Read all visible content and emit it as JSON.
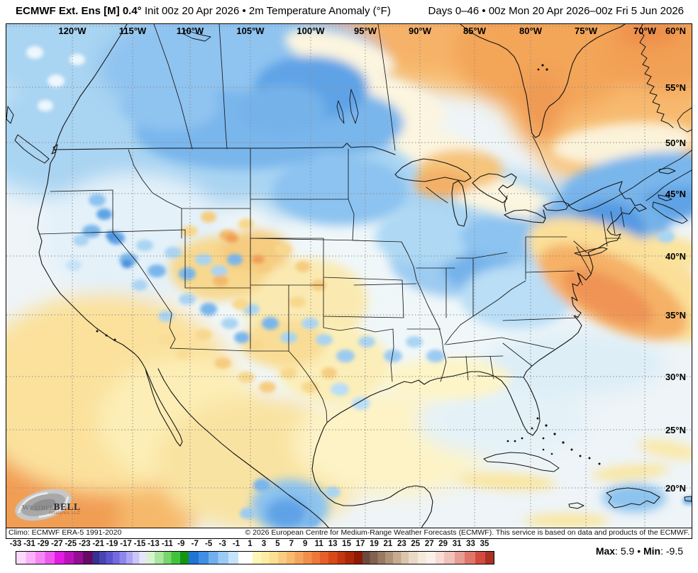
{
  "header": {
    "left_bold": "ECMWF Ext. Ens [M] 0.4°",
    "left_rest": " Init 00z 20 Apr 2026 • 2m Temperature Anomaly (°F)",
    "right": "Days 0–46 • 00z Mon 20 Apr 2026–00z Fri 5 Jun 2026"
  },
  "map": {
    "lon_labels": [
      "120°W",
      "115°W",
      "110°W",
      "105°W",
      "100°W",
      "95°W",
      "90°W",
      "85°W",
      "80°W",
      "75°W",
      "70°W"
    ],
    "lat_labels": [
      "60°N",
      "55°N",
      "50°N",
      "45°N",
      "40°N",
      "35°N",
      "30°N",
      "25°N",
      "20°N"
    ],
    "logo": {
      "brand_left": "Weather",
      "brand_right": "BELL",
      "subtitle": "Analytics LLC"
    },
    "climo": "Climo: ECMWF ERA-5 1991-2020",
    "copyright": "© 2026 European Centre for Medium-Range Weather Forecasts (ECMWF). This service is based on data and products of the ECMWF."
  },
  "scale": {
    "unit": "°F",
    "labels": [
      -33,
      -31,
      -29,
      -27,
      -25,
      -23,
      -21,
      -19,
      -17,
      -15,
      -13,
      -11,
      -9,
      -7,
      -5,
      -3,
      -1,
      1,
      3,
      5,
      7,
      9,
      11,
      13,
      15,
      17,
      19,
      21,
      23,
      25,
      27,
      29,
      31,
      33,
      35
    ],
    "stops": [
      [
        "#fcd9fc",
        2
      ],
      [
        "#f9b2f9",
        4
      ],
      [
        "#f487f4",
        6
      ],
      [
        "#ee58ee",
        8
      ],
      [
        "#e21ce2",
        10
      ],
      [
        "#bb13bb",
        12
      ],
      [
        "#920e92",
        14
      ],
      [
        "#660a66",
        16
      ],
      [
        "#37318f",
        17.4
      ],
      [
        "#4943b3",
        18.8
      ],
      [
        "#5b55cd",
        20.2
      ],
      [
        "#716bdf",
        21.6
      ],
      [
        "#8d87ec",
        23
      ],
      [
        "#aba5f3",
        24.4
      ],
      [
        "#cac6f8",
        25.8
      ],
      [
        "#e7e5fc",
        27.2
      ],
      [
        "#d8f3d0",
        29
      ],
      [
        "#abe6a0",
        30.8
      ],
      [
        "#77d56b",
        32.5
      ],
      [
        "#41c23c",
        34.3
      ],
      [
        "#149414",
        36.1
      ],
      [
        "#2173d4",
        38.2
      ],
      [
        "#418ee4",
        40.3
      ],
      [
        "#70b0ee",
        42.3
      ],
      [
        "#9acbf4",
        44.4
      ],
      [
        "#c5e3f9",
        46.5
      ],
      [
        "#ffffff",
        49.5
      ],
      [
        "#fdf6b8",
        51.3
      ],
      [
        "#fceda5",
        53
      ],
      [
        "#fbdf93",
        54.8
      ],
      [
        "#f9cd81",
        56.6
      ],
      [
        "#f7ba6e",
        58.3
      ],
      [
        "#f4a55c",
        60.1
      ],
      [
        "#f18f4a",
        61.9
      ],
      [
        "#ed7839",
        63.6
      ],
      [
        "#e55f28",
        65.4
      ],
      [
        "#d8491a",
        67.2
      ],
      [
        "#c4360f",
        68.9
      ],
      [
        "#ab2708",
        70.7
      ],
      [
        "#8f1a04",
        72.5
      ],
      [
        "#6b4a3e",
        74.1
      ],
      [
        "#81614f",
        75.7
      ],
      [
        "#987a62",
        77.3
      ],
      [
        "#af9278",
        78.9
      ],
      [
        "#c6ab90",
        80.6
      ],
      [
        "#dbc5ab",
        82.2
      ],
      [
        "#ead9c6",
        84.1
      ],
      [
        "#f5ead9",
        85.9
      ],
      [
        "#faf1ea",
        87.8
      ],
      [
        "#f7dcd4",
        89.6
      ],
      [
        "#f0c2ba",
        91.8
      ],
      [
        "#e89e93",
        93.9
      ],
      [
        "#de776a",
        96.1
      ],
      [
        "#d14c3e",
        98.2
      ],
      [
        "#a93225",
        100
      ]
    ],
    "stats": {
      "max_label": "Max",
      "max_value": "5.9",
      "sep": "•",
      "min_label": "Min",
      "min_value": "-9.5"
    }
  }
}
